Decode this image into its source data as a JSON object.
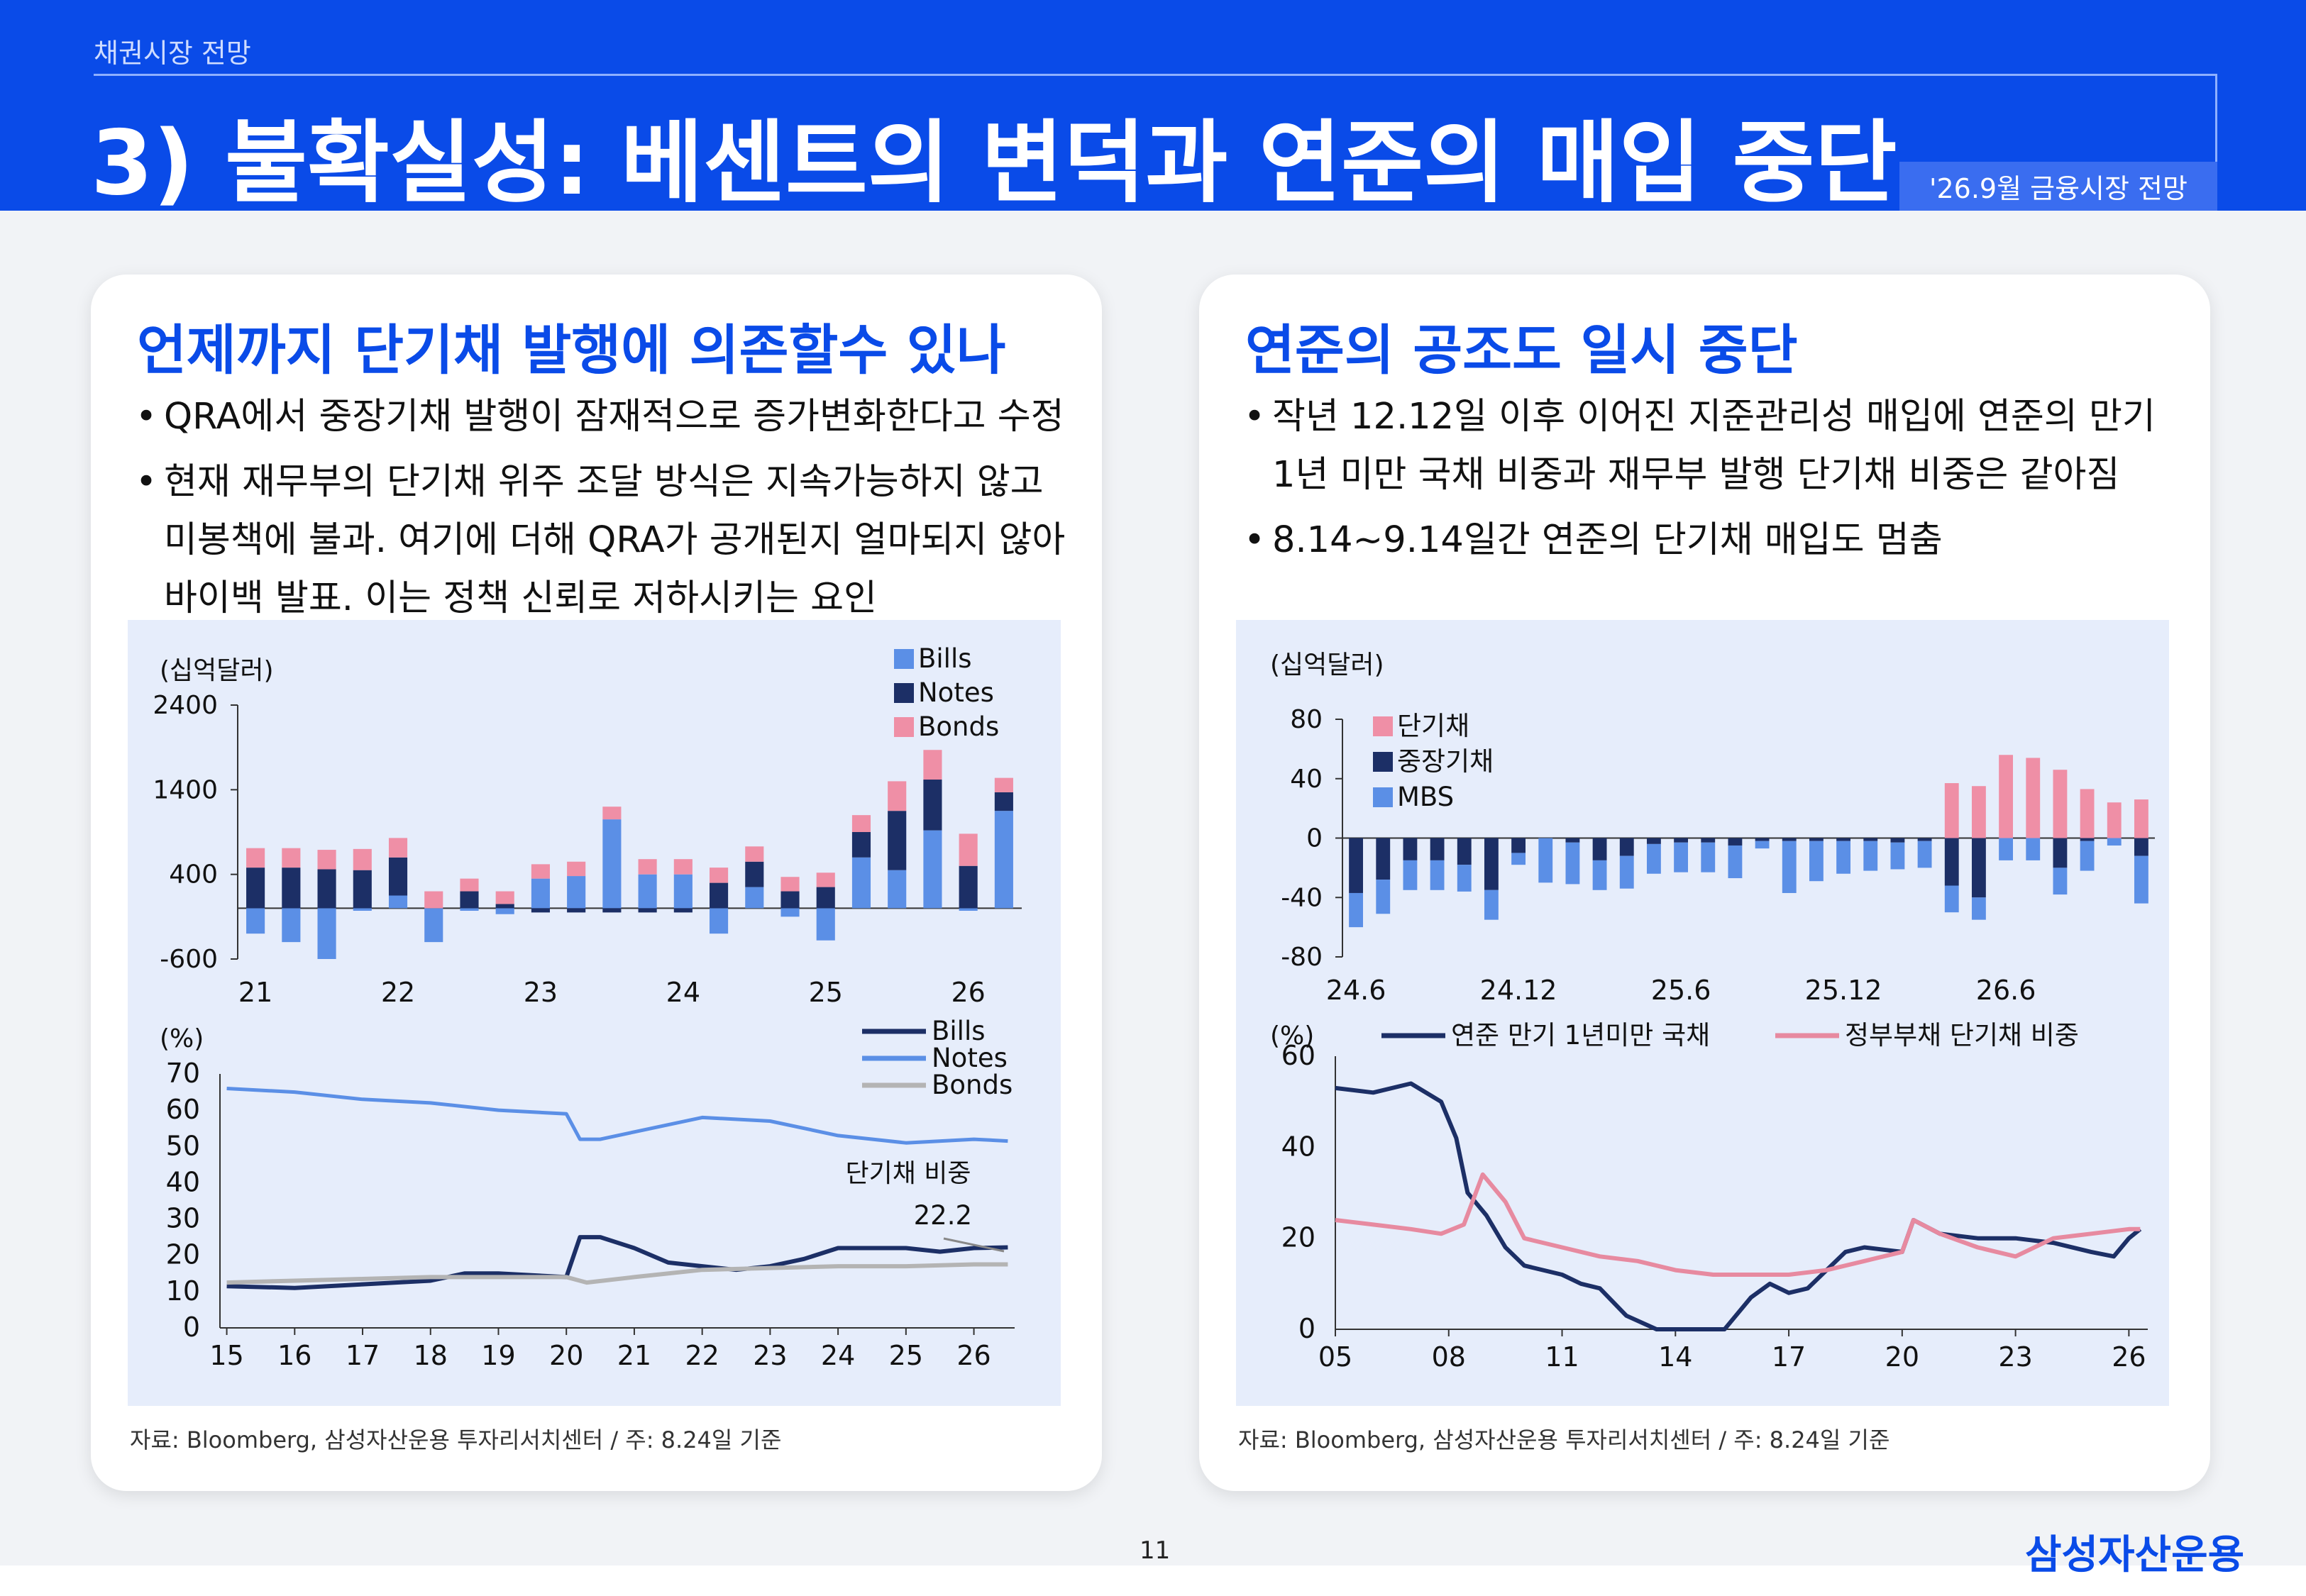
{
  "header": {
    "kicker": "채권시장 전망",
    "title": "3) 불확실성: 베센트의 변덕과 연준의 매입 중단",
    "badge": "'26.9월 금융시장 전망"
  },
  "colors": {
    "brand_blue": "#0a4be8",
    "bills": "#5b8fe6",
    "notes": "#1c2f66",
    "bonds": "#ef8fa6",
    "bonds_gray": "#b4b4b4"
  },
  "left_panel": {
    "title": "언제까지 단기채 발행에 의존할수 있나",
    "bullets": [
      "QRA에서 중장기채 발행이 잠재적으로 증가변화한다고 수정",
      "현재 재무부의 단기채 위주 조달 방식은 지속가능하지 않고 미봉책에 불과. 여기에 더해 QRA가 공개된지 얼마되지 않아 바이백 발표. 이는 정책 신뢰로 저하시키는 요인"
    ],
    "source": "자료: Bloomberg, 삼성자산운용 투자리서치센터 / 주: 8.24일 기준"
  },
  "right_panel": {
    "title": "연준의 공조도 일시 중단",
    "bullets": [
      "작년 12.12일 이후 이어진 지준관리성 매입에 연준의 만기 1년 미만 국채 비중과 재무부 발행 단기채 비중은 같아짐",
      "8.14~9.14일간 연준의 단기채 매입도 멈춤"
    ],
    "source": "자료: Bloomberg, 삼성자산운용 투자리서치센터 / 주: 8.24일 기준"
  },
  "footer": {
    "page": "11",
    "brand": "삼성자산운용"
  },
  "chart_data": [
    {
      "id": "c1",
      "type": "bar",
      "stacked": true,
      "unit_label": "(십억달러)",
      "ylim": [
        -600,
        2400
      ],
      "yticks": [
        "2400",
        "1400",
        "400",
        "-600"
      ],
      "xtick_labels": [
        "21",
        "22",
        "23",
        "24",
        "25",
        "26"
      ],
      "legend": [
        "Bills",
        "Notes",
        "Bonds"
      ],
      "series": [
        {
          "name": "Bills",
          "values": [
            -300,
            -400,
            -600,
            -30,
            150,
            -400,
            -30,
            -70,
            350,
            380,
            1050,
            400,
            400,
            -300,
            250,
            -100,
            -380,
            600,
            450,
            920,
            -30,
            1150
          ]
        },
        {
          "name": "Notes",
          "values": [
            480,
            480,
            460,
            450,
            450,
            0,
            200,
            50,
            -50,
            -50,
            -50,
            -50,
            -50,
            300,
            300,
            200,
            250,
            300,
            700,
            600,
            500,
            220
          ]
        },
        {
          "name": "Bonds",
          "values": [
            230,
            230,
            230,
            250,
            230,
            200,
            150,
            150,
            170,
            170,
            150,
            180,
            180,
            180,
            180,
            170,
            170,
            200,
            350,
            350,
            380,
            170
          ]
        }
      ]
    },
    {
      "id": "c2",
      "type": "line",
      "unit_label": "(%)",
      "ylim": [
        0,
        70
      ],
      "yticks": [
        "70",
        "60",
        "50",
        "40",
        "30",
        "20",
        "10",
        "0"
      ],
      "xtick_labels": [
        "15",
        "16",
        "17",
        "18",
        "19",
        "20",
        "21",
        "22",
        "23",
        "24",
        "25",
        "26"
      ],
      "annotation": {
        "label": "단기채 비중",
        "value": "22.2"
      },
      "series": [
        {
          "name": "Bills",
          "x": [
            2015,
            2016,
            2017,
            2018,
            2018.5,
            2019,
            2020,
            2020.2,
            2020.5,
            2021,
            2021.5,
            2022,
            2022.5,
            2023,
            2023.5,
            2024,
            2024.5,
            2025,
            2025.5,
            2026,
            2026.5
          ],
          "values": [
            11.5,
            11,
            12,
            13,
            15,
            15,
            14,
            25,
            25,
            22,
            18,
            17,
            16,
            17,
            19,
            22,
            22,
            22,
            21,
            22,
            22.2
          ]
        },
        {
          "name": "Notes",
          "x": [
            2015,
            2016,
            2017,
            2018,
            2019,
            2020,
            2020.2,
            2020.5,
            2021,
            2022,
            2023,
            2024,
            2025,
            2026,
            2026.5
          ],
          "values": [
            66,
            65,
            63,
            62,
            60,
            59,
            52,
            52,
            54,
            58,
            57,
            53,
            51,
            52,
            51.5
          ]
        },
        {
          "name": "Bonds",
          "x": [
            2015,
            2016,
            2017,
            2018,
            2019,
            2020,
            2020.3,
            2021,
            2022,
            2023,
            2024,
            2025,
            2026,
            2026.5
          ],
          "values": [
            12.5,
            13,
            13.5,
            14,
            14,
            14,
            12.5,
            14,
            16,
            16.5,
            17,
            17,
            17.5,
            17.5
          ]
        }
      ]
    },
    {
      "id": "c3",
      "type": "bar",
      "stacked": true,
      "unit_label": "(십억달러)",
      "ylim": [
        -80,
        80
      ],
      "yticks": [
        "80",
        "40",
        "0",
        "-40",
        "-80"
      ],
      "xtick_labels": [
        "24.6",
        "24.12",
        "25.6",
        "25.12",
        "26.6"
      ],
      "legend": [
        "단기채",
        "중장기채",
        "MBS"
      ],
      "series": [
        {
          "name": "단기채",
          "values": [
            0,
            0,
            0,
            0,
            0,
            0,
            0,
            0,
            0,
            0,
            0,
            0,
            0,
            0,
            0,
            0,
            0,
            0,
            0,
            0,
            0,
            0,
            37,
            35,
            56,
            54,
            46,
            33,
            24,
            26
          ]
        },
        {
          "name": "중장기채",
          "values": [
            -37,
            -28,
            -15,
            -15,
            -18,
            -35,
            -10,
            0,
            -3,
            -15,
            -12,
            -4,
            -3,
            -3,
            -5,
            -2,
            -2,
            -2,
            -2,
            -2,
            -3,
            -2,
            -32,
            -40,
            0,
            0,
            -20,
            -2,
            0,
            -12
          ]
        },
        {
          "name": "MBS",
          "values": [
            -23,
            -23,
            -20,
            -20,
            -18,
            -20,
            -8,
            -30,
            -28,
            -20,
            -22,
            -20,
            -20,
            -20,
            -22,
            -5,
            -35,
            -27,
            -22,
            -20,
            -18,
            -18,
            -18,
            -15,
            -15,
            -15,
            -18,
            -20,
            -5,
            -32
          ]
        }
      ]
    },
    {
      "id": "c4",
      "type": "line",
      "unit_label": "(%)",
      "ylim": [
        0,
        60
      ],
      "yticks": [
        "60",
        "40",
        "20",
        "0"
      ],
      "xtick_labels": [
        "05",
        "08",
        "11",
        "14",
        "17",
        "20",
        "23",
        "26"
      ],
      "legend": [
        "연준 만기 1년미만 국채",
        "정부부채 단기채 비중"
      ],
      "series": [
        {
          "name": "연준 만기 1년미만 국채",
          "x": [
            2005,
            2006,
            2007,
            2007.8,
            2008.2,
            2008.5,
            2009,
            2009.5,
            2010,
            2011,
            2011.5,
            2012,
            2012.7,
            2013.5,
            2014,
            2015.3,
            2016,
            2016.5,
            2017,
            2017.5,
            2018,
            2018.5,
            2019,
            2020,
            2020.3,
            2021,
            2022,
            2023,
            2024,
            2025,
            2025.6,
            2026,
            2026.3
          ],
          "values": [
            53,
            52,
            54,
            50,
            42,
            30,
            25,
            18,
            14,
            12,
            10,
            9,
            3,
            0,
            0,
            0,
            7,
            10,
            8,
            9,
            13,
            17,
            18,
            17,
            24,
            21,
            20,
            20,
            19,
            17,
            16,
            20,
            22
          ]
        },
        {
          "name": "정부부채 단기채 비중",
          "x": [
            2005,
            2006,
            2007,
            2007.8,
            2008.4,
            2008.9,
            2009.5,
            2010,
            2011,
            2012,
            2013,
            2014,
            2015,
            2016,
            2017,
            2018,
            2019,
            2020,
            2020.3,
            2021,
            2022,
            2023,
            2024,
            2025,
            2026,
            2026.3
          ],
          "values": [
            24,
            23,
            22,
            21,
            23,
            34,
            28,
            20,
            18,
            16,
            15,
            13,
            12,
            12,
            12,
            13,
            15,
            17,
            24,
            21,
            18,
            16,
            20,
            21,
            22,
            22
          ]
        }
      ]
    }
  ]
}
